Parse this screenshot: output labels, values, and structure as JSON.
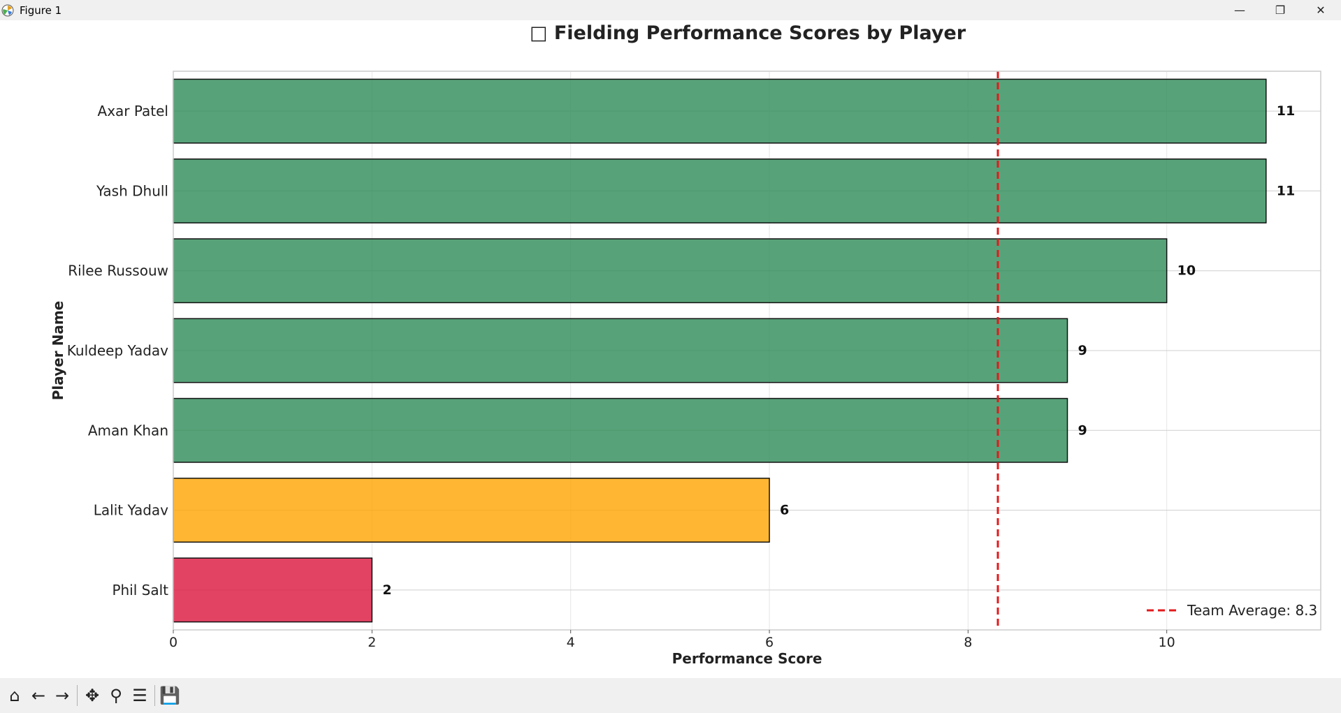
{
  "window": {
    "title": "Figure 1",
    "controls": {
      "minimize": "—",
      "restore": "❐",
      "close": "✕"
    }
  },
  "toolbar": {
    "buttons": [
      {
        "name": "home-icon",
        "glyph": "⌂"
      },
      {
        "name": "back-icon",
        "glyph": "←"
      },
      {
        "name": "forward-icon",
        "glyph": "→"
      },
      {
        "name": "pan-icon",
        "glyph": "✥"
      },
      {
        "name": "zoom-icon",
        "glyph": "⚲"
      },
      {
        "name": "configure-subplots-icon",
        "glyph": "☰"
      },
      {
        "name": "save-icon",
        "glyph": "💾"
      }
    ]
  },
  "chart_data": {
    "type": "bar",
    "orientation": "horizontal",
    "title": "□ Fielding Performance Scores by Player",
    "xlabel": "Performance Score",
    "ylabel": "Player Name",
    "categories": [
      "Axar Patel",
      "Yash Dhull",
      "Rilee Russouw",
      "Kuldeep Yadav",
      "Aman Khan",
      "Lalit Yadav",
      "Phil Salt"
    ],
    "values": [
      11,
      11,
      10,
      9,
      9,
      6,
      2
    ],
    "value_labels": [
      "11",
      "11",
      "10",
      "9",
      "9",
      "6",
      "2"
    ],
    "bar_colors": [
      "#2e8b57",
      "#2e8b57",
      "#2e8b57",
      "#2e8b57",
      "#2e8b57",
      "#ffa500",
      "#dc143c"
    ],
    "bar_opacity": 0.8,
    "xlim": [
      0,
      11.55
    ],
    "xticks": [
      0,
      2,
      4,
      6,
      8,
      10
    ],
    "xtick_labels": [
      "0",
      "2",
      "4",
      "6",
      "8",
      "10"
    ],
    "reference_line": {
      "value": 8.3,
      "style": "dashed",
      "color": "#e31a1c"
    },
    "legend": {
      "position": "lower-right",
      "entries": [
        "Team Average: 8.3"
      ]
    },
    "grid": true
  }
}
